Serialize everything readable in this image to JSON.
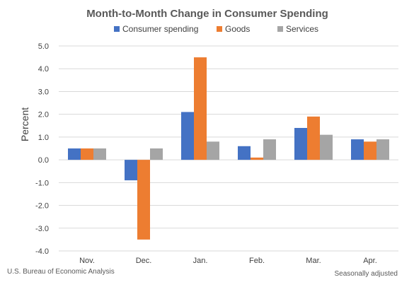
{
  "chart_data": {
    "type": "bar",
    "title": "Month-to-Month Change in Consumer Spending",
    "ylabel": "Percent",
    "xlabel": "",
    "categories": [
      "Nov.",
      "Dec.",
      "Jan.",
      "Feb.",
      "Mar.",
      "Apr."
    ],
    "series": [
      {
        "name": "Consumer spending",
        "color": "#4472C4",
        "values": [
          0.5,
          -0.9,
          2.1,
          0.6,
          1.4,
          0.9
        ]
      },
      {
        "name": "Goods",
        "color": "#ED7D31",
        "values": [
          0.5,
          -3.5,
          4.5,
          0.1,
          1.9,
          0.8
        ]
      },
      {
        "name": "Services",
        "color": "#A5A5A5",
        "values": [
          0.5,
          0.5,
          0.8,
          0.9,
          1.1,
          0.9
        ]
      }
    ],
    "ylim": [
      -4.0,
      5.0
    ],
    "yticks": [
      "5.0",
      "4.0",
      "3.0",
      "2.0",
      "1.0",
      "0.0",
      "-1.0",
      "-2.0",
      "-3.0",
      "-4.0"
    ],
    "grid": true,
    "legend_position": "top",
    "source_note": "U.S. Bureau of Economic Analysis",
    "adjustment_note": "Seasonally adjusted"
  }
}
